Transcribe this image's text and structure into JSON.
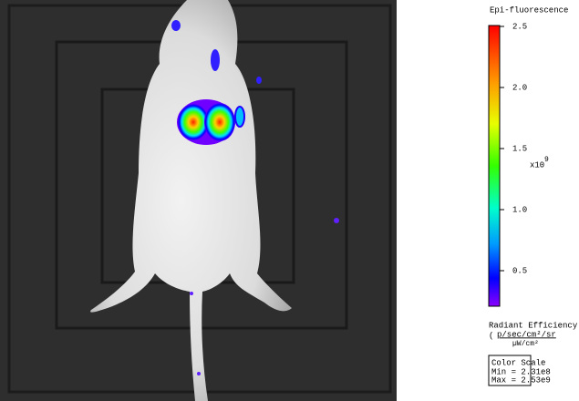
{
  "panel": {
    "title": "Epi-fluorescence",
    "ticks": [
      "2.5",
      "2.0",
      "1.5",
      "1.0",
      "0.5"
    ],
    "multiplier": "x10",
    "exponent": "9",
    "unit_label": "Radiant Efficiency",
    "unit_paren": "(",
    "unit_numerator": "p/sec/cm²/sr",
    "unit_denominator": "µW/cm²",
    "color_scale": {
      "title": "Color Scale",
      "min": "Min = 2.31e8",
      "max": "Max = 2.53e9"
    }
  }
}
